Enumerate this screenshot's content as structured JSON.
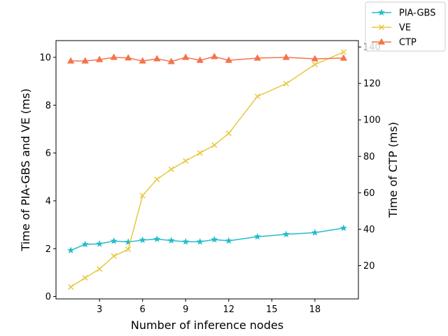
{
  "chart_data": {
    "type": "line",
    "xlabel": "Number of inference nodes",
    "ylabel_left": "Time of PIA-GBS and VE (ms)",
    "ylabel_right": "Time of CTP (ms)",
    "x_ticks": [
      3,
      6,
      9,
      12,
      15,
      18
    ],
    "y_left_ticks": [
      0,
      2,
      4,
      6,
      8,
      10
    ],
    "y_right_ticks": [
      20,
      40,
      60,
      80,
      100,
      120,
      140
    ],
    "xlim": [
      -0.03,
      21.03
    ],
    "ylim_left": [
      -0.1,
      10.7
    ],
    "ylim_right": [
      1.75,
      143.5
    ],
    "legend_position": "upper-right-outside",
    "grid": false,
    "series": [
      {
        "name": "PIA-GBS",
        "axis": "left",
        "color": "#26bccc",
        "marker": "star",
        "x": [
          1,
          2,
          3,
          4,
          5,
          6,
          7,
          8,
          9,
          10,
          11,
          12,
          14,
          16,
          18,
          20
        ],
        "values": [
          1.93,
          2.18,
          2.2,
          2.32,
          2.28,
          2.36,
          2.4,
          2.34,
          2.29,
          2.29,
          2.38,
          2.33,
          2.5,
          2.6,
          2.67,
          2.86
        ]
      },
      {
        "name": "VE",
        "axis": "left",
        "color": "#e8c83f",
        "marker": "x",
        "x": [
          1,
          2,
          3,
          4,
          5,
          6,
          7,
          8,
          9,
          10,
          11,
          12,
          14,
          16,
          18,
          20
        ],
        "values": [
          0.4,
          0.78,
          1.15,
          1.69,
          1.97,
          4.22,
          4.9,
          5.32,
          5.67,
          6.0,
          6.33,
          6.82,
          8.37,
          8.9,
          9.7,
          10.22
        ]
      },
      {
        "name": "CTP",
        "axis": "right",
        "color": "#f5734a",
        "marker": "triangle",
        "x": [
          1,
          2,
          3,
          4,
          5,
          6,
          7,
          8,
          9,
          10,
          11,
          12,
          14,
          16,
          18,
          20
        ],
        "values": [
          132.3,
          132.3,
          133.1,
          134.3,
          134.0,
          132.3,
          133.5,
          132.0,
          134.3,
          132.7,
          134.7,
          132.7,
          133.9,
          134.3,
          133.5,
          133.9
        ]
      }
    ]
  }
}
